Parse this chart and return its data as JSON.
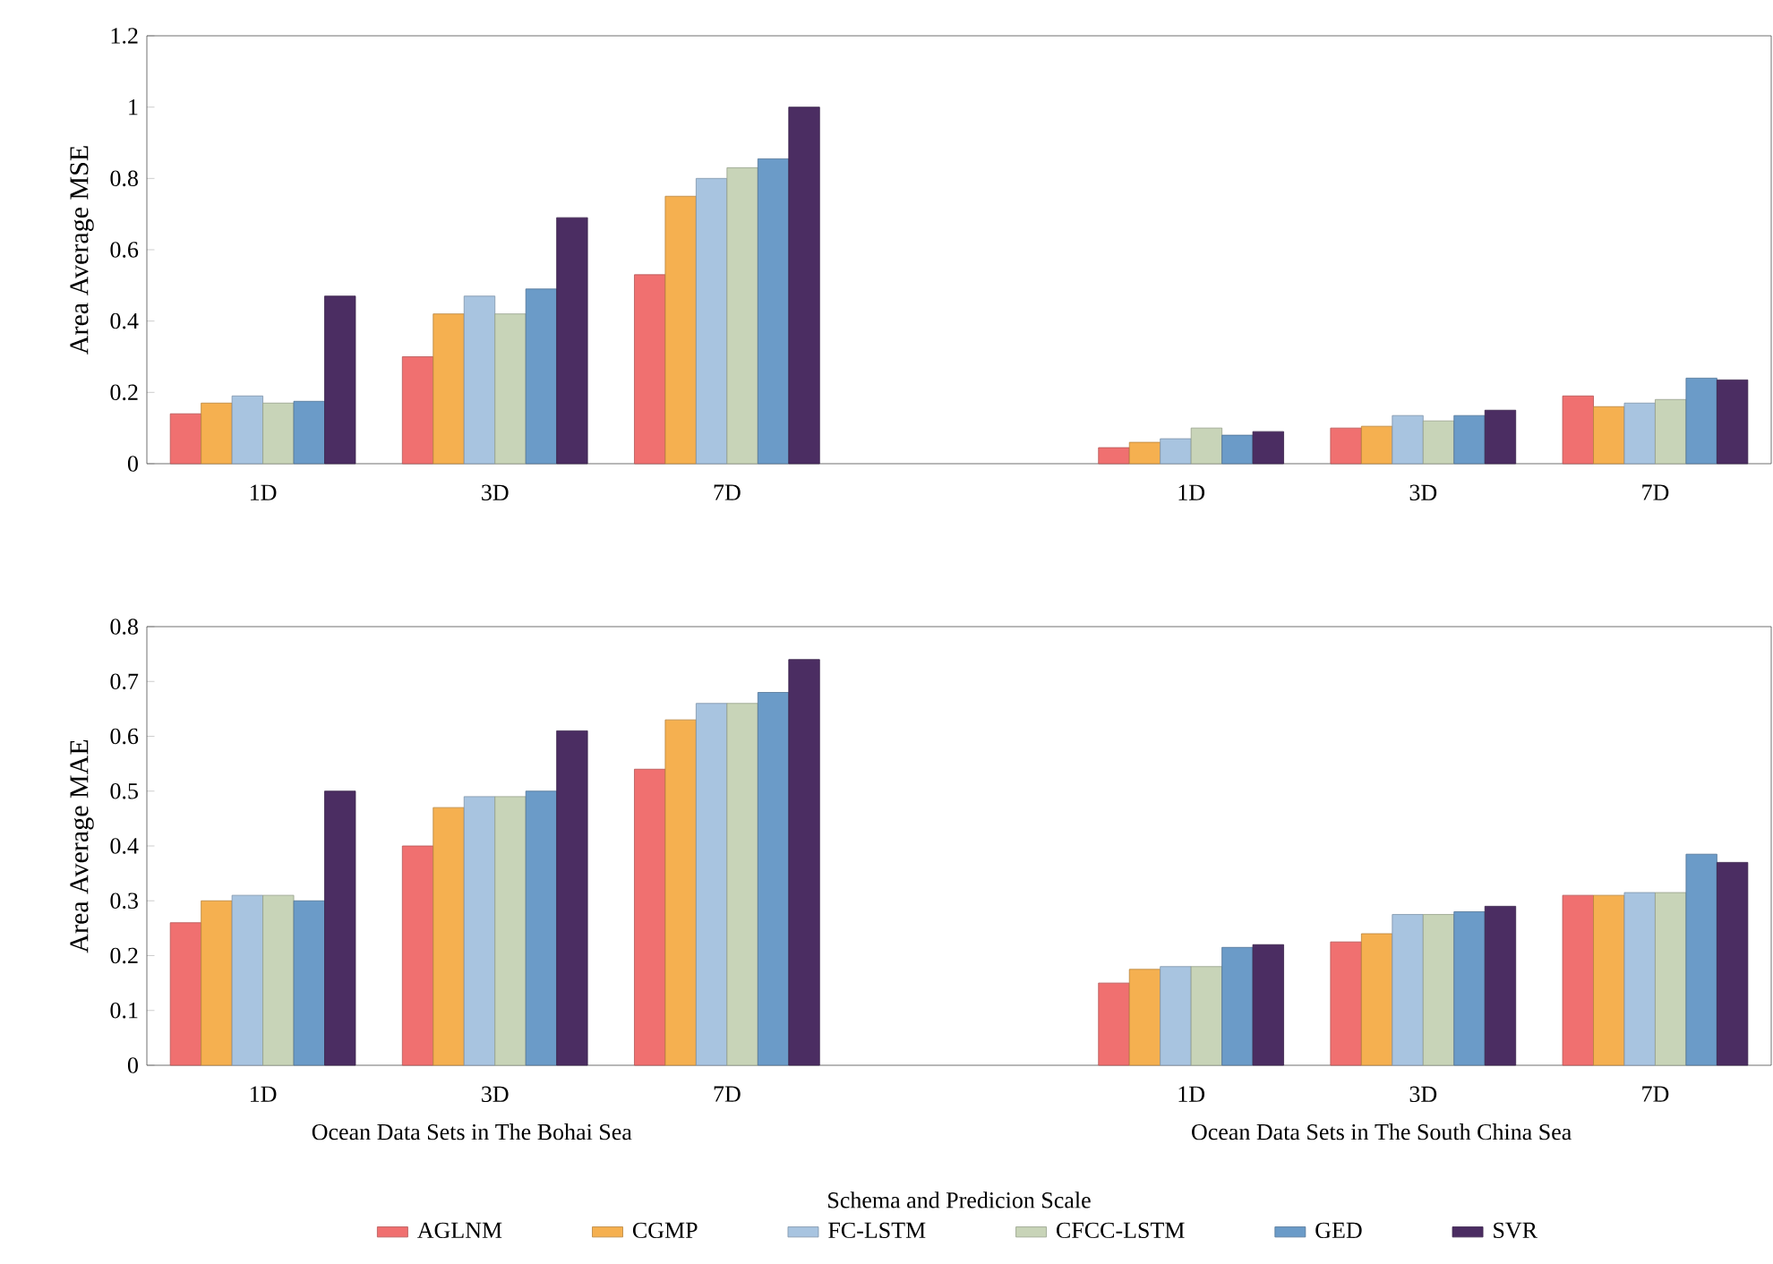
{
  "chart_data": [
    {
      "type": "bar",
      "ylabel": "Area Average MSE",
      "categories": [
        "1D",
        "3D",
        "7D",
        null,
        "1D",
        "3D",
        "7D"
      ],
      "ylim": [
        0,
        1.2
      ],
      "yticks": [
        0,
        0.2,
        0.4,
        0.6,
        0.8,
        1,
        1.2
      ],
      "series": [
        {
          "color": "#f07070",
          "values": [
            0.14,
            0.3,
            0.53,
            null,
            0.045,
            0.1,
            0.19
          ]
        },
        {
          "color": "#f5b050",
          "values": [
            0.17,
            0.42,
            0.75,
            null,
            0.06,
            0.105,
            0.16
          ]
        },
        {
          "color": "#a8c4e0",
          "values": [
            0.19,
            0.47,
            0.8,
            null,
            0.07,
            0.135,
            0.17
          ]
        },
        {
          "color": "#c8d4b8",
          "values": [
            0.17,
            0.42,
            0.83,
            null,
            0.1,
            0.12,
            0.18
          ]
        },
        {
          "color": "#6b9bc8",
          "values": [
            0.175,
            0.49,
            0.855,
            null,
            0.08,
            0.135,
            0.24
          ]
        },
        {
          "color": "#4b2d62",
          "values": [
            0.47,
            0.69,
            1.0,
            null,
            0.09,
            0.15,
            0.235
          ]
        }
      ]
    },
    {
      "type": "bar",
      "ylabel": "Area Average MAE",
      "xlabel": "Schema and Predicion Scale",
      "categories": [
        "1D",
        "3D",
        "7D",
        null,
        "1D",
        "3D",
        "7D"
      ],
      "ylim": [
        0,
        0.8
      ],
      "yticks": [
        0,
        0.1,
        0.2,
        0.3,
        0.4,
        0.5,
        0.6,
        0.7,
        0.8
      ],
      "legend": "bottom",
      "annotations": [
        "Ocean Data Sets in The Bohai Sea",
        "Ocean Data Sets in The South China Sea"
      ],
      "series": [
        {
          "name": "AGLNM",
          "color": "#f07070",
          "values": [
            0.26,
            0.4,
            0.54,
            null,
            0.15,
            0.225,
            0.31
          ]
        },
        {
          "name": "CGMP",
          "color": "#f5b050",
          "values": [
            0.3,
            0.47,
            0.63,
            null,
            0.175,
            0.24,
            0.31
          ]
        },
        {
          "name": "FC-LSTM",
          "color": "#a8c4e0",
          "values": [
            0.31,
            0.49,
            0.66,
            null,
            0.18,
            0.275,
            0.315
          ]
        },
        {
          "name": "CFCC-LSTM",
          "color": "#c8d4b8",
          "values": [
            0.31,
            0.49,
            0.66,
            null,
            0.18,
            0.275,
            0.315
          ]
        },
        {
          "name": "GED",
          "color": "#6b9bc8",
          "values": [
            0.3,
            0.5,
            0.68,
            null,
            0.215,
            0.28,
            0.385
          ]
        },
        {
          "name": "SVR",
          "color": "#4b2d62",
          "values": [
            0.5,
            0.61,
            0.74,
            null,
            0.22,
            0.29,
            0.37
          ]
        }
      ]
    }
  ]
}
